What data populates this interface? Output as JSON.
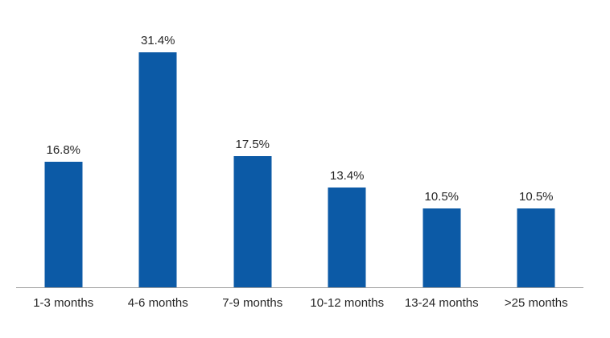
{
  "chart_data": {
    "type": "bar",
    "title": "",
    "xlabel": "",
    "ylabel": "",
    "categories": [
      "1-3 months",
      "4-6 months",
      "7-9 months",
      "10-12 months",
      "13-24 months",
      ">25 months"
    ],
    "values": [
      16.8,
      31.4,
      17.5,
      13.4,
      10.5,
      10.5
    ],
    "value_labels": [
      "16.8%",
      "31.4%",
      "17.5%",
      "13.4%",
      "10.5%",
      "10.5%"
    ],
    "ylim": [
      0,
      35
    ],
    "grid": false,
    "legend": "none",
    "bar_color": "#0C5AA6",
    "value_label_color": "#262626",
    "category_label_color": "#262626",
    "axis_line_color": "#9D9D9D",
    "background_color": "#FFFFFF"
  }
}
